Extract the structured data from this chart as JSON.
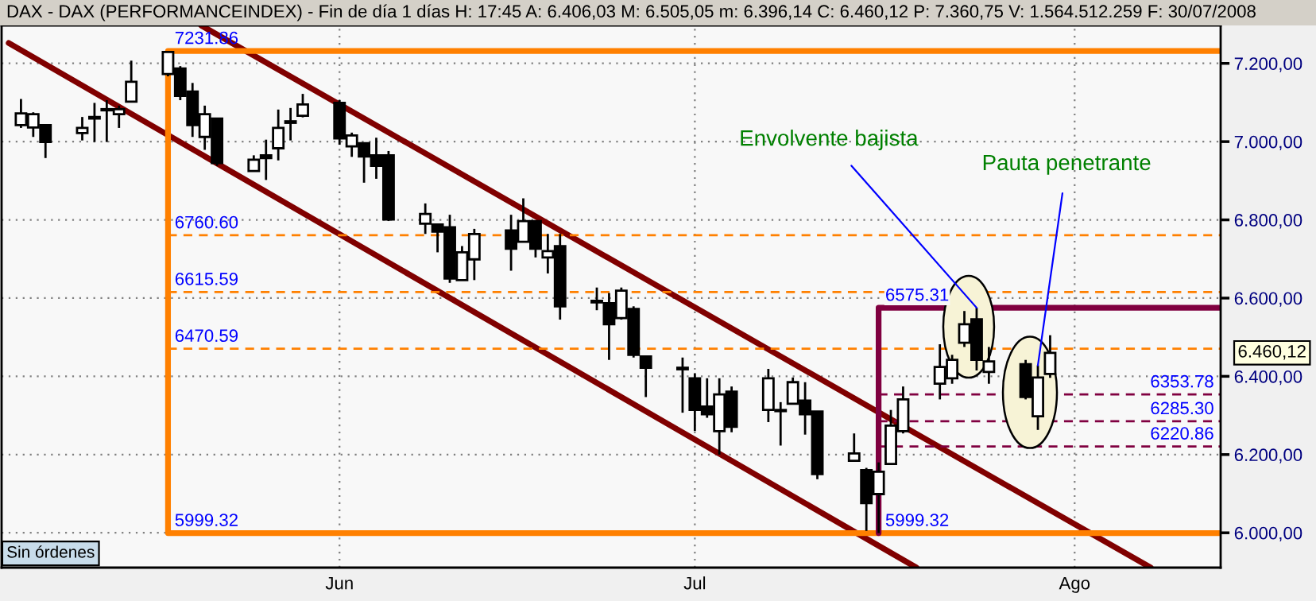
{
  "chart_data": {
    "type": "candlestick",
    "title": "DAX - DAX (PERFORMANCEINDEX) - Fin de día 1 días H: 17:45 A: 6.406,03 M: 6.505,05 m: 6.396,14 C: 6.460,12 P: 7.360,75 V: 1.564.512.259 F: 30/07/2008",
    "x": [
      "2008-05-07",
      "2008-05-08",
      "2008-05-09",
      "2008-05-12",
      "2008-05-13",
      "2008-05-14",
      "2008-05-15",
      "2008-05-16",
      "2008-05-19",
      "2008-05-20",
      "2008-05-21",
      "2008-05-22",
      "2008-05-23",
      "2008-05-26",
      "2008-05-27",
      "2008-05-28",
      "2008-05-29",
      "2008-05-30",
      "2008-06-02",
      "2008-06-03",
      "2008-06-04",
      "2008-06-05",
      "2008-06-06",
      "2008-06-09",
      "2008-06-10",
      "2008-06-11",
      "2008-06-12",
      "2008-06-13",
      "2008-06-16",
      "2008-06-17",
      "2008-06-18",
      "2008-06-19",
      "2008-06-20",
      "2008-06-23",
      "2008-06-24",
      "2008-06-25",
      "2008-06-26",
      "2008-06-27",
      "2008-06-30",
      "2008-07-01",
      "2008-07-02",
      "2008-07-03",
      "2008-07-04",
      "2008-07-07",
      "2008-07-08",
      "2008-07-09",
      "2008-07-10",
      "2008-07-11",
      "2008-07-14",
      "2008-07-15",
      "2008-07-16",
      "2008-07-17",
      "2008-07-18",
      "2008-07-21",
      "2008-07-22",
      "2008-07-23",
      "2008-07-24",
      "2008-07-25",
      "2008-07-28",
      "2008-07-29",
      "2008-07-30"
    ],
    "ohlc": [
      [
        7042,
        7109,
        7035,
        7072
      ],
      [
        7036,
        7075,
        7012,
        7070
      ],
      [
        7042,
        7045,
        6958,
        6999
      ],
      [
        7022,
        7063,
        7003,
        7035
      ],
      [
        7059,
        7099,
        6999,
        7063
      ],
      [
        7080,
        7106,
        6999,
        7083
      ],
      [
        7070,
        7092,
        7035,
        7083
      ],
      [
        7102,
        7207,
        7102,
        7153
      ],
      [
        7173,
        7231.86,
        7167,
        7229
      ],
      [
        7187,
        7193,
        7106,
        7117
      ],
      [
        7128,
        7150,
        7012,
        7042
      ],
      [
        7012,
        7092,
        6979,
        7070
      ],
      [
        7059,
        7059,
        6938,
        6945
      ],
      [
        6925,
        6965,
        6925,
        6954
      ],
      [
        6965,
        7005,
        6902,
        6958
      ],
      [
        6983,
        7082,
        6952,
        7035
      ],
      [
        7048,
        7086,
        7003,
        7052
      ],
      [
        7066,
        7122,
        7062,
        7095
      ],
      [
        7099,
        7106,
        6992,
        7008
      ],
      [
        6988,
        7023,
        6961,
        7016
      ],
      [
        6996,
        6996,
        6895,
        6962
      ],
      [
        6965,
        7010,
        6905,
        6938
      ],
      [
        6965,
        6976,
        6797,
        6801
      ],
      [
        6790,
        6842,
        6764,
        6815
      ],
      [
        6788,
        6788,
        6717,
        6770
      ],
      [
        6781,
        6813,
        6639,
        6650
      ],
      [
        6646,
        6733,
        6646,
        6717
      ],
      [
        6699,
        6777,
        6646,
        6764
      ],
      [
        6773,
        6813,
        6670,
        6726
      ],
      [
        6744,
        6855,
        6744,
        6797
      ],
      [
        6797,
        6797,
        6704,
        6726
      ],
      [
        6704,
        6764,
        6663,
        6720
      ],
      [
        6733,
        6764,
        6545,
        6579
      ],
      [
        6593,
        6627,
        6569,
        6589
      ],
      [
        6587,
        6613,
        6442,
        6533
      ],
      [
        6549,
        6627,
        6545,
        6619
      ],
      [
        6572,
        6579,
        6448,
        6455
      ],
      [
        6451,
        6451,
        6347,
        6422
      ],
      [
        6422,
        6448,
        6307,
        6418
      ],
      [
        6395,
        6408,
        6260,
        6314
      ],
      [
        6323,
        6395,
        6294,
        6303
      ],
      [
        6260,
        6395,
        6200,
        6354
      ],
      [
        6361,
        6374,
        6257,
        6271
      ],
      [
        6314,
        6419,
        6283,
        6395
      ],
      [
        6314,
        6334,
        6223,
        6311
      ],
      [
        6330,
        6397,
        6330,
        6385
      ],
      [
        6338,
        6385,
        6251,
        6303
      ],
      [
        6310,
        6310,
        6137,
        6150
      ],
      [
        6184,
        6254,
        6184,
        6203
      ],
      [
        6160,
        6166,
        6005,
        6076
      ],
      [
        6099,
        6180,
        5999.32,
        6156
      ],
      [
        6176,
        6314,
        6176,
        6274
      ],
      [
        6260,
        6374,
        6254,
        6341
      ],
      [
        6381,
        6482,
        6341,
        6424
      ],
      [
        6395,
        6455,
        6381,
        6442
      ],
      [
        6486,
        6567,
        6475,
        6533
      ],
      [
        6546,
        6575.31,
        6415,
        6442
      ],
      [
        6411,
        6475,
        6381,
        6438
      ],
      [
        6431,
        6442,
        6341,
        6347
      ],
      [
        6298,
        6428,
        6263,
        6397
      ],
      [
        6406.03,
        6505.05,
        6396.14,
        6460.12
      ]
    ],
    "series": [
      {
        "type": "line",
        "color": "#800000",
        "line_style": "solid",
        "x": [
          "2008-05-21T17:00",
          "2008-08-07T05:00"
        ],
        "values": [
          7297,
          5911
        ]
      },
      {
        "type": "line",
        "color": "#800000",
        "line_style": "solid",
        "x": [
          "2008-05-06",
          "2008-07-19T02:00"
        ],
        "values": [
          7252,
          5911
        ]
      },
      {
        "type": "line",
        "color": "#ff8000",
        "line_style": "solid",
        "x": [
          "2008-08-12T22:00",
          "2008-05-19",
          "2008-05-19",
          "2008-08-12T22:00"
        ],
        "values": [
          7231.86,
          7231.86,
          5999.32,
          5999.32
        ]
      },
      {
        "type": "line",
        "color": "#ff8000",
        "line_style": "dashed",
        "x": [
          "2008-05-19",
          "2008-08-12T22:00"
        ],
        "values": [
          6760.6,
          6760.6
        ]
      },
      {
        "type": "line",
        "color": "#ff8000",
        "line_style": "dashed",
        "x": [
          "2008-05-19",
          "2008-08-12T22:00"
        ],
        "values": [
          6615.59,
          6615.59
        ]
      },
      {
        "type": "line",
        "color": "#ff8000",
        "line_style": "dashed",
        "x": [
          "2008-05-19",
          "2008-08-12T22:00"
        ],
        "values": [
          6470.59,
          6470.59
        ]
      },
      {
        "type": "line",
        "color": "#800040",
        "line_style": "solid",
        "x": [
          "2008-07-16",
          "2008-07-16",
          "2008-08-12T22:00"
        ],
        "values": [
          5999.32,
          6575.31,
          6575.31
        ]
      },
      {
        "type": "line",
        "color": "#800040",
        "line_style": "dashed",
        "x": [
          "2008-07-16",
          "2008-08-12T22:00"
        ],
        "values": [
          6353.78,
          6353.78
        ]
      },
      {
        "type": "line",
        "color": "#800040",
        "line_style": "dashed",
        "x": [
          "2008-07-16",
          "2008-08-12T22:00"
        ],
        "values": [
          6285.3,
          6285.3
        ]
      },
      {
        "type": "line",
        "color": "#800040",
        "line_style": "dashed",
        "x": [
          "2008-07-16",
          "2008-08-12T22:00"
        ],
        "values": [
          6220.86,
          6220.86
        ]
      }
    ],
    "annotations": [
      "Sin órdenes",
      {
        "text": "7231.86",
        "x": "2008-05-19",
        "y": 7231.86
      },
      {
        "text": "6760.60",
        "x": "2008-05-19",
        "y": 6760.6
      },
      {
        "text": "6615.59",
        "x": "2008-05-19",
        "y": 6615.59
      },
      {
        "text": "6470.59",
        "x": "2008-05-19",
        "y": 6470.59
      },
      {
        "text": "5999.32",
        "x": "2008-05-19",
        "y": 5999.32
      },
      {
        "text": "6575.31",
        "x": "2008-07-16",
        "y": 6575.31
      },
      {
        "text": "6353.78",
        "x": "2008-08-12T22:00",
        "y": 6353.78
      },
      {
        "text": "6285.30",
        "x": "2008-08-12T22:00",
        "y": 6285.3
      },
      {
        "text": "6220.86",
        "x": "2008-08-12T22:00",
        "y": 6220.86
      },
      {
        "text": "5999.32",
        "x": "2008-07-16",
        "y": 5999.32
      },
      {
        "text": "Envolvente bajista",
        "x": "2008-07-24",
        "y": 6575.31
      },
      {
        "text": "Pauta penetrante",
        "x": "2008-07-29",
        "y": 6428
      },
      "6.460,12"
    ],
    "xlim": [
      "2008-05-05T10:00",
      "2008-08-12T22:00"
    ],
    "xticks": [
      {
        "value": "2008-06-02",
        "label": "Jun"
      },
      {
        "value": "2008-07-01",
        "label": "Jul"
      },
      {
        "value": "2008-08-01",
        "label": "Ago"
      }
    ],
    "ylim": [
      5911,
      7297
    ],
    "yticks": [
      {
        "value": 6000,
        "label": "6.000,00"
      },
      {
        "value": 6200,
        "label": "6.200,00"
      },
      {
        "value": 6400,
        "label": "6.400,00"
      },
      {
        "value": 6600,
        "label": "6.600,00"
      },
      {
        "value": 6800,
        "label": "6.800,00"
      },
      {
        "value": 7000,
        "label": "7.000,00"
      },
      {
        "value": 7200,
        "label": "7.200,00"
      }
    ],
    "grid": true
  }
}
